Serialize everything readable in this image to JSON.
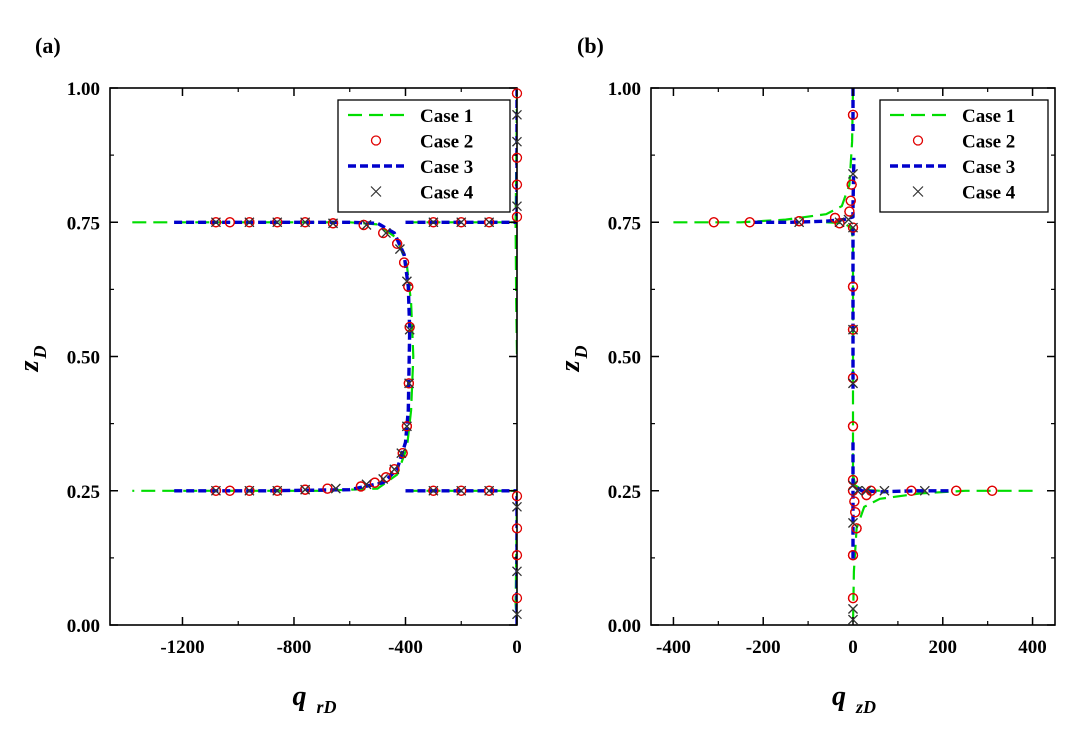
{
  "colors": {
    "case1": "#00dd00",
    "case2": "#e00000",
    "case3": "#0000cc",
    "case4": "#333333",
    "axis": "#000000"
  },
  "chart_data": [
    {
      "panel_label": "(a)",
      "type": "line",
      "xlabel_main": "q",
      "xlabel_sub": "rD",
      "ylabel_main": "z",
      "ylabel_sub": "D",
      "xlim": [
        -1460,
        0
      ],
      "ylim": [
        0,
        1
      ],
      "xticks": [
        -1200,
        -800,
        -400,
        0
      ],
      "xtick_labels": [
        "-1200",
        "-800",
        "-400",
        "0"
      ],
      "yticks": [
        0,
        0.25,
        0.5,
        0.75,
        1.0
      ],
      "ytick_labels": [
        "0.00",
        "0.25",
        "0.50",
        "0.75",
        "1.00"
      ],
      "legend_position": "top-right",
      "series": [
        {
          "name": "Case 1",
          "style": "long-dash",
          "segments": [
            [
              [
                -1380,
                0.75
              ],
              [
                -1000,
                0.75
              ],
              [
                -600,
                0.75
              ],
              [
                -500,
                0.746
              ],
              [
                -430,
                0.72
              ],
              [
                -395,
                0.67
              ],
              [
                -380,
                0.6
              ],
              [
                -372,
                0.5
              ],
              [
                -380,
                0.4
              ],
              [
                -395,
                0.33
              ],
              [
                -430,
                0.28
              ],
              [
                -500,
                0.254
              ],
              [
                -700,
                0.25
              ],
              [
                -1000,
                0.25
              ],
              [
                -1380,
                0.25
              ]
            ],
            [
              [
                -400,
                0.75
              ],
              [
                -200,
                0.75
              ],
              [
                -30,
                0.75
              ],
              [
                0,
                0.75
              ]
            ],
            [
              [
                -400,
                0.25
              ],
              [
                -200,
                0.25
              ],
              [
                -30,
                0.25
              ],
              [
                0,
                0.25
              ]
            ],
            [
              [
                0,
                1.0
              ],
              [
                -3,
                0.85
              ],
              [
                -5,
                0.75
              ],
              [
                -3,
                0.6
              ],
              [
                0,
                0.5
              ]
            ],
            [
              [
                0,
                0.25
              ],
              [
                -3,
                0.12
              ],
              [
                -5,
                0.04
              ],
              [
                0,
                0.0
              ]
            ]
          ]
        },
        {
          "name": "Case 2",
          "style": "circle",
          "points": [
            [
              -1080,
              0.75
            ],
            [
              -1030,
              0.75
            ],
            [
              -960,
              0.75
            ],
            [
              -860,
              0.75
            ],
            [
              -760,
              0.75
            ],
            [
              -660,
              0.748
            ],
            [
              -550,
              0.745
            ],
            [
              -480,
              0.73
            ],
            [
              -430,
              0.71
            ],
            [
              -405,
              0.675
            ],
            [
              -390,
              0.63
            ],
            [
              -385,
              0.555
            ],
            [
              -388,
              0.45
            ],
            [
              -395,
              0.37
            ],
            [
              -410,
              0.32
            ],
            [
              -440,
              0.29
            ],
            [
              -470,
              0.275
            ],
            [
              -510,
              0.265
            ],
            [
              -560,
              0.258
            ],
            [
              -680,
              0.254
            ],
            [
              -760,
              0.252
            ],
            [
              -860,
              0.25
            ],
            [
              -960,
              0.25
            ],
            [
              -1030,
              0.25
            ],
            [
              -1080,
              0.25
            ],
            [
              -300,
              0.75
            ],
            [
              -200,
              0.75
            ],
            [
              -100,
              0.75
            ],
            [
              -300,
              0.25
            ],
            [
              -200,
              0.25
            ],
            [
              -100,
              0.25
            ],
            [
              0,
              0.99
            ],
            [
              0,
              0.87
            ],
            [
              0,
              0.82
            ],
            [
              0,
              0.76
            ],
            [
              0,
              0.24
            ],
            [
              0,
              0.18
            ],
            [
              0,
              0.13
            ],
            [
              0,
              0.05
            ]
          ]
        },
        {
          "name": "Case 3",
          "style": "short-dash",
          "segments": [
            [
              [
                -1230,
                0.75
              ],
              [
                -900,
                0.75
              ],
              [
                -600,
                0.75
              ],
              [
                -500,
                0.748
              ],
              [
                -440,
                0.73
              ],
              [
                -405,
                0.69
              ],
              [
                -390,
                0.63
              ],
              [
                -385,
                0.55
              ],
              [
                -390,
                0.4
              ],
              [
                -400,
                0.34
              ],
              [
                -430,
                0.29
              ],
              [
                -480,
                0.265
              ],
              [
                -600,
                0.252
              ],
              [
                -900,
                0.25
              ],
              [
                -1230,
                0.25
              ]
            ],
            [
              [
                -400,
                0.75
              ],
              [
                -200,
                0.75
              ],
              [
                -30,
                0.75
              ],
              [
                0,
                0.75
              ]
            ],
            [
              [
                -400,
                0.25
              ],
              [
                -200,
                0.25
              ],
              [
                -30,
                0.25
              ],
              [
                0,
                0.25
              ]
            ],
            [
              [
                0,
                1.0
              ],
              [
                0,
                0.76
              ]
            ],
            [
              [
                0,
                0.24
              ],
              [
                0,
                0.0
              ]
            ]
          ]
        },
        {
          "name": "Case 4",
          "style": "cross",
          "points": [
            [
              -1080,
              0.75
            ],
            [
              -960,
              0.75
            ],
            [
              -860,
              0.75
            ],
            [
              -760,
              0.75
            ],
            [
              -660,
              0.748
            ],
            [
              -540,
              0.745
            ],
            [
              -470,
              0.73
            ],
            [
              -420,
              0.7
            ],
            [
              -395,
              0.64
            ],
            [
              -385,
              0.55
            ],
            [
              -387,
              0.45
            ],
            [
              -395,
              0.37
            ],
            [
              -415,
              0.32
            ],
            [
              -440,
              0.29
            ],
            [
              -480,
              0.272
            ],
            [
              -540,
              0.262
            ],
            [
              -650,
              0.254
            ],
            [
              -760,
              0.252
            ],
            [
              -860,
              0.25
            ],
            [
              -960,
              0.25
            ],
            [
              -1080,
              0.25
            ],
            [
              -300,
              0.75
            ],
            [
              -200,
              0.75
            ],
            [
              -100,
              0.75
            ],
            [
              -300,
              0.25
            ],
            [
              -200,
              0.25
            ],
            [
              -100,
              0.25
            ],
            [
              0,
              0.95
            ],
            [
              0,
              0.9
            ],
            [
              0,
              0.78
            ],
            [
              0,
              0.22
            ],
            [
              0,
              0.1
            ],
            [
              0,
              0.02
            ]
          ]
        }
      ]
    },
    {
      "panel_label": "(b)",
      "type": "line",
      "xlabel_main": "q",
      "xlabel_sub": "zD",
      "ylabel_main": "z",
      "ylabel_sub": "D",
      "xlim": [
        -450,
        450
      ],
      "ylim": [
        0,
        1
      ],
      "xticks": [
        -400,
        -200,
        0,
        200,
        400
      ],
      "xtick_labels": [
        "-400",
        "-200",
        "0",
        "200",
        "400"
      ],
      "yticks": [
        0,
        0.25,
        0.5,
        0.75,
        1.0
      ],
      "ytick_labels": [
        "0.00",
        "0.25",
        "0.50",
        "0.75",
        "1.00"
      ],
      "legend_position": "top-right",
      "series": [
        {
          "name": "Case 1",
          "style": "long-dash",
          "segments": [
            [
              [
                -400,
                0.75
              ],
              [
                -250,
                0.75
              ],
              [
                -150,
                0.755
              ],
              [
                -60,
                0.765
              ],
              [
                -25,
                0.78
              ],
              [
                -8,
                0.82
              ],
              [
                -2,
                0.9
              ],
              [
                0,
                1.0
              ]
            ],
            [
              [
                -60,
                0.75
              ],
              [
                -20,
                0.748
              ],
              [
                -5,
                0.74
              ],
              [
                0,
                0.72
              ],
              [
                0,
                0.55
              ],
              [
                0,
                0.35
              ],
              [
                0,
                0.26
              ]
            ],
            [
              [
                400,
                0.25
              ],
              [
                250,
                0.25
              ],
              [
                150,
                0.245
              ],
              [
                60,
                0.235
              ],
              [
                25,
                0.22
              ],
              [
                8,
                0.18
              ],
              [
                2,
                0.1
              ],
              [
                0,
                0.0
              ]
            ],
            [
              [
                60,
                0.25
              ],
              [
                20,
                0.252
              ],
              [
                5,
                0.26
              ],
              [
                0,
                0.28
              ]
            ]
          ]
        },
        {
          "name": "Case 2",
          "style": "circle",
          "points": [
            [
              -310,
              0.75
            ],
            [
              -230,
              0.75
            ],
            [
              -120,
              0.752
            ],
            [
              -40,
              0.758
            ],
            [
              -30,
              0.748
            ],
            [
              -8,
              0.77
            ],
            [
              -5,
              0.79
            ],
            [
              -3,
              0.82
            ],
            [
              0,
              0.95
            ],
            [
              0,
              0.74
            ],
            [
              0,
              0.63
            ],
            [
              0,
              0.55
            ],
            [
              0,
              0.46
            ],
            [
              0,
              0.37
            ],
            [
              0,
              0.27
            ],
            [
              0,
              0.25
            ],
            [
              3,
              0.23
            ],
            [
              5,
              0.21
            ],
            [
              8,
              0.18
            ],
            [
              0,
              0.13
            ],
            [
              0,
              0.05
            ],
            [
              40,
              0.25
            ],
            [
              30,
              0.242
            ],
            [
              130,
              0.25
            ],
            [
              230,
              0.25
            ],
            [
              310,
              0.25
            ]
          ]
        },
        {
          "name": "Case 3",
          "style": "short-dash",
          "segments": [
            [
              [
                -220,
                0.75
              ],
              [
                -140,
                0.75
              ],
              [
                -60,
                0.752
              ],
              [
                -20,
                0.755
              ],
              [
                0,
                0.76
              ],
              [
                0,
                0.78
              ],
              [
                2,
                0.87
              ]
            ],
            [
              [
                0,
                1.0
              ],
              [
                0,
                0.92
              ]
            ],
            [
              [
                0,
                0.74
              ],
              [
                0,
                0.6
              ],
              [
                0,
                0.5
              ],
              [
                0,
                0.44
              ]
            ],
            [
              [
                0,
                0.34
              ],
              [
                0,
                0.27
              ],
              [
                0,
                0.26
              ],
              [
                20,
                0.25
              ],
              [
                60,
                0.248
              ],
              [
                140,
                0.25
              ],
              [
                220,
                0.25
              ]
            ],
            [
              [
                0,
                0.25
              ],
              [
                0,
                0.15
              ],
              [
                0,
                0.12
              ]
            ]
          ]
        },
        {
          "name": "Case 4",
          "style": "cross",
          "points": [
            [
              -120,
              0.75
            ],
            [
              -30,
              0.75
            ],
            [
              -10,
              0.755
            ],
            [
              0,
              0.84
            ],
            [
              0,
              0.74
            ],
            [
              0,
              0.55
            ],
            [
              0,
              0.45
            ],
            [
              0,
              0.26
            ],
            [
              0,
              0.19
            ],
            [
              0,
              0.03
            ],
            [
              0,
              0.01
            ],
            [
              10,
              0.25
            ],
            [
              30,
              0.25
            ],
            [
              70,
              0.25
            ],
            [
              160,
              0.25
            ]
          ]
        }
      ]
    }
  ]
}
